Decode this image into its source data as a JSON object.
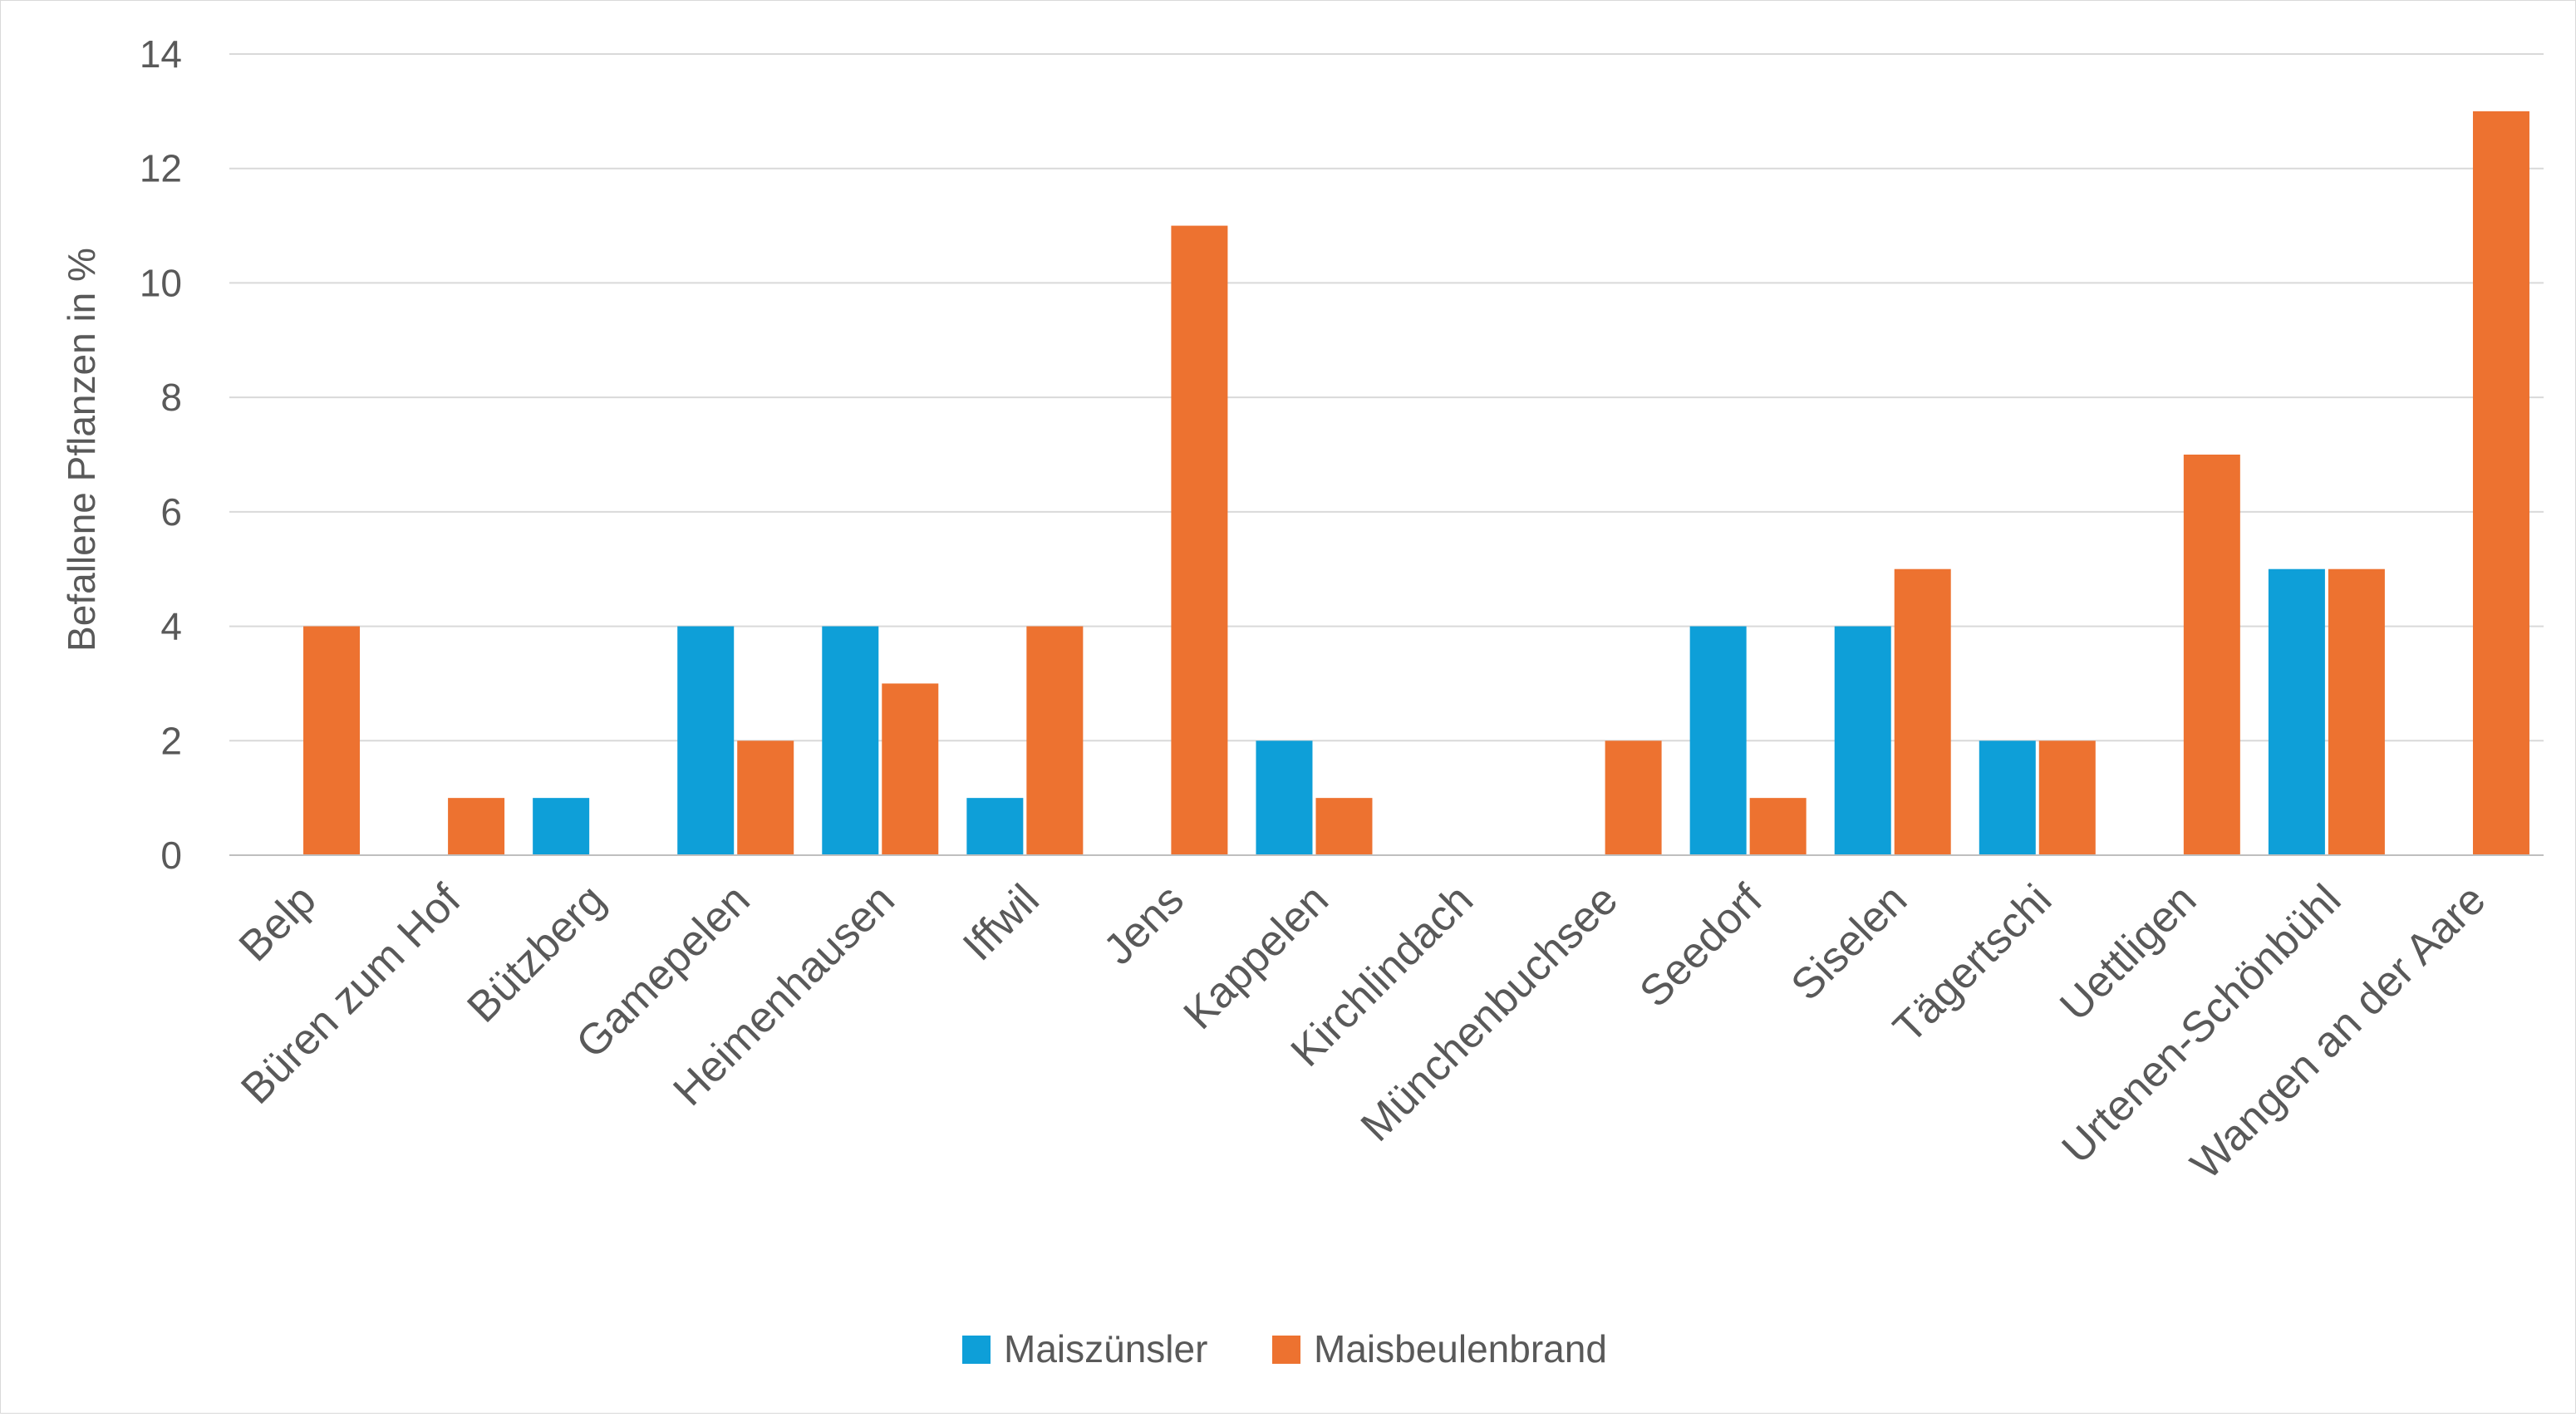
{
  "chart_data": {
    "type": "bar",
    "title": "",
    "xlabel": "",
    "ylabel": "Befallene Pflanzen in %",
    "ylim": [
      0,
      14
    ],
    "yticks": [
      0,
      2,
      4,
      6,
      8,
      10,
      12,
      14
    ],
    "grid": true,
    "legend_position": "bottom",
    "categories": [
      "Belp",
      "Büren zum Hof",
      "Bützberg",
      "Gamepelen",
      "Heimenhausen",
      "Iffwil",
      "Jens",
      "Kappelen",
      "Kirchlindach",
      "Münchenbuchsee",
      "Seedorf",
      "Siselen",
      "Tägertschi",
      "Uettligen",
      "Urtenen-Schönbühl",
      "Wangen an der Aare"
    ],
    "series": [
      {
        "name": "Maiszünsler",
        "color": "#0e9fd8",
        "values": [
          0,
          0,
          1,
          4,
          4,
          1,
          0,
          2,
          0,
          0,
          4,
          4,
          2,
          0,
          5,
          0
        ]
      },
      {
        "name": "Maisbeulenbrand",
        "color": "#ed7230",
        "values": [
          4,
          1,
          0,
          2,
          3,
          4,
          11,
          1,
          0,
          2,
          1,
          5,
          2,
          7,
          5,
          13
        ]
      }
    ]
  }
}
